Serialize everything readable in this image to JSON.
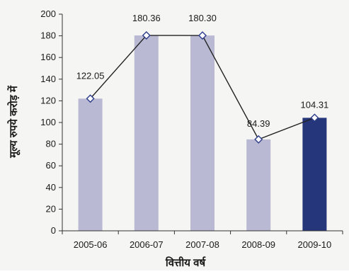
{
  "chart_data": {
    "type": "bar",
    "categories": [
      "2005-06",
      "2006-07",
      "2007-08",
      "2008-09",
      "2009-10"
    ],
    "values": [
      122.05,
      180.36,
      180.3,
      84.39,
      104.31
    ],
    "data_labels": [
      "122.05",
      "180.36",
      "180.30",
      "84.39",
      "104.31"
    ],
    "line_overlay": true,
    "highlight_index": 4,
    "title": "",
    "xlabel": "वित्तीय वर्ष",
    "ylabel": "मूल्य रुपये करोड़ में",
    "ylim": [
      0,
      200
    ],
    "yticks": [
      0,
      20,
      40,
      60,
      80,
      100,
      120,
      140,
      160,
      180,
      200
    ],
    "grid": false,
    "legend": "none",
    "colors": {
      "bar": "#b9b9d3",
      "bar_highlight": "#26367a",
      "line": "#222222",
      "marker_stroke": "#2c3c8a",
      "marker_fill": "#ffffff",
      "axis": "#333333"
    }
  }
}
